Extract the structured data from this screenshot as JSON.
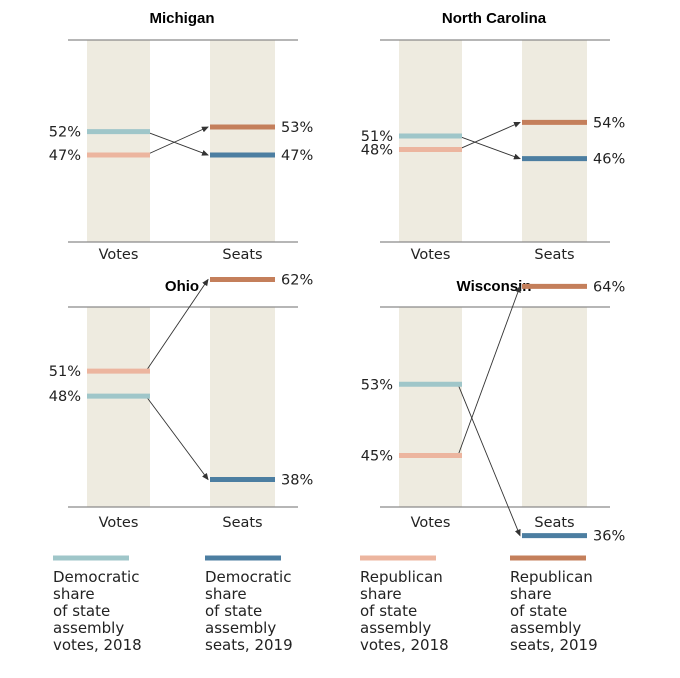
{
  "colors": {
    "dem_votes": "#9fc6c9",
    "dem_seats": "#4c7ea1",
    "rep_votes": "#ecb59f",
    "rep_seats": "#c47f5b",
    "column_bg": "#eeebe0",
    "axis": "#8a8a8a",
    "arrow": "#333333"
  },
  "chart_data": [
    {
      "type": "slope",
      "title": "Michigan",
      "categories": [
        "Votes",
        "Seats"
      ],
      "ylim": [
        0,
        100
      ],
      "series": [
        {
          "name": "Democratic",
          "values": [
            52,
            47
          ],
          "labels": [
            "52%",
            "47%"
          ]
        },
        {
          "name": "Republican",
          "values": [
            47,
            53
          ],
          "labels": [
            "47%",
            "53%"
          ]
        }
      ]
    },
    {
      "type": "slope",
      "title": "North Carolina",
      "categories": [
        "Votes",
        "Seats"
      ],
      "ylim": [
        0,
        100
      ],
      "series": [
        {
          "name": "Democratic",
          "values": [
            51,
            46
          ],
          "labels": [
            "51%",
            "46%"
          ]
        },
        {
          "name": "Republican",
          "values": [
            48,
            54
          ],
          "labels": [
            "48%",
            "54%"
          ]
        }
      ]
    },
    {
      "type": "slope",
      "title": "Ohio",
      "categories": [
        "Votes",
        "Seats"
      ],
      "ylim": [
        0,
        100
      ],
      "series": [
        {
          "name": "Democratic",
          "values": [
            48,
            38
          ],
          "labels": [
            "48%",
            "38%"
          ]
        },
        {
          "name": "Republican",
          "values": [
            51,
            62
          ],
          "labels": [
            "51%",
            "62%"
          ]
        }
      ]
    },
    {
      "type": "slope",
      "title": "Wisconsin",
      "categories": [
        "Votes",
        "Seats"
      ],
      "ylim": [
        0,
        100
      ],
      "series": [
        {
          "name": "Democratic",
          "values": [
            53,
            36
          ],
          "labels": [
            "53%",
            "36%"
          ]
        },
        {
          "name": "Republican",
          "values": [
            45,
            64
          ],
          "labels": [
            "45%",
            "64%"
          ]
        }
      ]
    }
  ],
  "legend": [
    {
      "key": "dem_votes",
      "lines": [
        "Democratic",
        "share",
        "of state",
        "assembly",
        "votes, 2018"
      ]
    },
    {
      "key": "dem_seats",
      "lines": [
        "Democratic",
        "share",
        "of state",
        "assembly",
        "seats, 2019"
      ]
    },
    {
      "key": "rep_votes",
      "lines": [
        "Republican",
        "share",
        "of state",
        "assembly",
        "votes, 2018"
      ]
    },
    {
      "key": "rep_seats",
      "lines": [
        "Republican",
        "share",
        "of state",
        "assembly",
        "seats, 2019"
      ]
    }
  ]
}
